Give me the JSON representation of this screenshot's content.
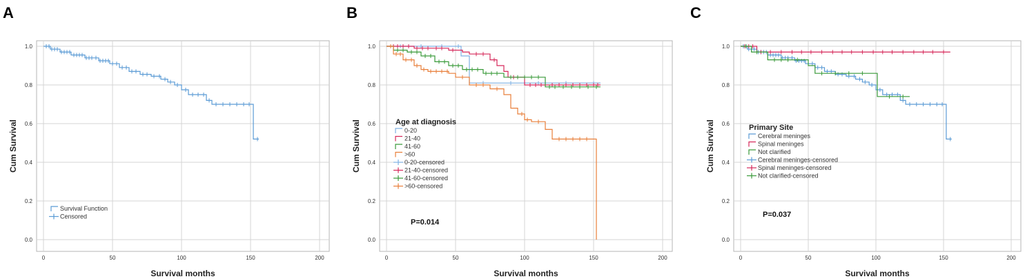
{
  "chart_data": [
    {
      "panel": "A",
      "type": "line",
      "xlabel": "Survival months",
      "ylabel": "Cum Survival",
      "xlim": [
        0,
        200
      ],
      "ylim": [
        0.0,
        1.0
      ],
      "x_ticks": [
        "0",
        "50",
        "100",
        "150",
        "200"
      ],
      "y_ticks": [
        "0.0",
        "0.2",
        "0.4",
        "0.6",
        "0.8",
        "1.0"
      ],
      "legend_title": "",
      "legend_items": [
        "Survival Function",
        "Censored"
      ],
      "p_value": "",
      "series": [
        {
          "name": "Survival Function",
          "color": "#5b9bd5",
          "steps": [
            [
              0,
              1.0
            ],
            [
              5,
              0.985
            ],
            [
              12,
              0.97
            ],
            [
              20,
              0.955
            ],
            [
              30,
              0.94
            ],
            [
              40,
              0.925
            ],
            [
              48,
              0.91
            ],
            [
              55,
              0.89
            ],
            [
              62,
              0.87
            ],
            [
              70,
              0.855
            ],
            [
              78,
              0.845
            ],
            [
              85,
              0.83
            ],
            [
              90,
              0.815
            ],
            [
              95,
              0.8
            ],
            [
              100,
              0.775
            ],
            [
              105,
              0.75
            ],
            [
              118,
              0.72
            ],
            [
              122,
              0.7
            ],
            [
              152,
              0.52
            ],
            [
              156,
              0.52
            ]
          ],
          "censored": [
            2,
            4,
            6,
            8,
            10,
            13,
            15,
            17,
            19,
            22,
            24,
            26,
            28,
            31,
            33,
            35,
            38,
            41,
            43,
            45,
            47,
            50,
            53,
            57,
            60,
            64,
            67,
            72,
            75,
            80,
            84,
            88,
            92,
            97,
            103,
            108,
            112,
            116,
            120,
            125,
            130,
            135,
            140,
            145,
            149,
            155
          ]
        }
      ]
    },
    {
      "panel": "B",
      "type": "line",
      "xlabel": "Survival months",
      "ylabel": "Cum Survival",
      "xlim": [
        0,
        200
      ],
      "ylim": [
        0.0,
        1.0
      ],
      "x_ticks": [
        "0",
        "50",
        "100",
        "150",
        "200"
      ],
      "y_ticks": [
        "0.0",
        "0.2",
        "0.4",
        "0.6",
        "0.8",
        "1.0"
      ],
      "legend_title": "Age at diagnosis",
      "legend_items": [
        "0-20",
        "21-40",
        "41-60",
        ">60",
        "0-20-censored",
        "21-40-censored",
        "41-60-censored",
        ">60-censored"
      ],
      "p_value": "P=0.014",
      "series": [
        {
          "name": "0-20",
          "color": "#7fb1e3",
          "steps": [
            [
              0,
              1.0
            ],
            [
              54,
              0.95
            ],
            [
              60,
              0.81
            ],
            [
              155,
              0.81
            ]
          ],
          "censored": [
            10,
            25,
            40,
            52,
            70,
            90,
            110,
            130,
            150
          ]
        },
        {
          "name": "21-40",
          "color": "#d6285a",
          "steps": [
            [
              0,
              1.0
            ],
            [
              20,
              0.99
            ],
            [
              45,
              0.98
            ],
            [
              55,
              0.97
            ],
            [
              60,
              0.96
            ],
            [
              75,
              0.93
            ],
            [
              80,
              0.9
            ],
            [
              85,
              0.87
            ],
            [
              88,
              0.84
            ],
            [
              100,
              0.8
            ],
            [
              115,
              0.8
            ],
            [
              155,
              0.8
            ]
          ],
          "censored": [
            5,
            8,
            12,
            16,
            22,
            26,
            30,
            36,
            40,
            48,
            65,
            70,
            78,
            92,
            104,
            108,
            112,
            120,
            125,
            130,
            135,
            140,
            145,
            150,
            153
          ]
        },
        {
          "name": "41-60",
          "color": "#3a9a3a",
          "steps": [
            [
              0,
              1.0
            ],
            [
              5,
              0.98
            ],
            [
              15,
              0.97
            ],
            [
              25,
              0.95
            ],
            [
              35,
              0.92
            ],
            [
              45,
              0.9
            ],
            [
              55,
              0.88
            ],
            [
              70,
              0.86
            ],
            [
              85,
              0.84
            ],
            [
              115,
              0.79
            ],
            [
              155,
              0.79
            ]
          ],
          "censored": [
            3,
            8,
            12,
            18,
            22,
            28,
            32,
            38,
            42,
            48,
            52,
            58,
            62,
            66,
            72,
            76,
            80,
            90,
            95,
            100,
            105,
            110,
            118,
            122,
            128,
            134,
            140,
            146,
            152
          ]
        },
        {
          "name": ">60",
          "color": "#e87f3a",
          "steps": [
            [
              0,
              1.0
            ],
            [
              5,
              0.96
            ],
            [
              12,
              0.93
            ],
            [
              20,
              0.9
            ],
            [
              25,
              0.88
            ],
            [
              30,
              0.87
            ],
            [
              45,
              0.86
            ],
            [
              50,
              0.84
            ],
            [
              60,
              0.8
            ],
            [
              75,
              0.78
            ],
            [
              85,
              0.75
            ],
            [
              90,
              0.68
            ],
            [
              95,
              0.65
            ],
            [
              100,
              0.62
            ],
            [
              105,
              0.61
            ],
            [
              115,
              0.57
            ],
            [
              120,
              0.52
            ],
            [
              150,
              0.52
            ],
            [
              152,
              0.0
            ]
          ],
          "censored": [
            3,
            7,
            10,
            14,
            18,
            22,
            27,
            32,
            36,
            40,
            44,
            55,
            65,
            70,
            80,
            98,
            102,
            110,
            125,
            130,
            135,
            140,
            145
          ]
        }
      ]
    },
    {
      "panel": "C",
      "type": "line",
      "xlabel": "Survival months",
      "ylabel": "Cum Survival",
      "xlim": [
        0,
        200
      ],
      "ylim": [
        0.0,
        1.0
      ],
      "x_ticks": [
        "0",
        "50",
        "100",
        "150",
        "200"
      ],
      "y_ticks": [
        "0.0",
        "0.2",
        "0.4",
        "0.6",
        "0.8",
        "1.0"
      ],
      "legend_title": "Primary Site",
      "legend_items": [
        "Cerebral meninges",
        "Spinal meninges",
        "Not clarified",
        "Cerebral meninges-censored",
        "Spinal meninges-censored",
        "Not clarified-censored"
      ],
      "p_value": "P=0.037",
      "series": [
        {
          "name": "Cerebral meninges",
          "color": "#5b9bd5",
          "steps": [
            [
              0,
              1.0
            ],
            [
              5,
              0.985
            ],
            [
              12,
              0.97
            ],
            [
              20,
              0.955
            ],
            [
              30,
              0.94
            ],
            [
              40,
              0.925
            ],
            [
              48,
              0.91
            ],
            [
              55,
              0.89
            ],
            [
              62,
              0.87
            ],
            [
              70,
              0.855
            ],
            [
              78,
              0.845
            ],
            [
              85,
              0.83
            ],
            [
              90,
              0.815
            ],
            [
              95,
              0.8
            ],
            [
              100,
              0.775
            ],
            [
              105,
              0.75
            ],
            [
              118,
              0.72
            ],
            [
              122,
              0.7
            ],
            [
              152,
              0.52
            ],
            [
              156,
              0.52
            ]
          ],
          "censored": [
            2,
            4,
            6,
            8,
            10,
            13,
            15,
            17,
            19,
            22,
            24,
            26,
            28,
            31,
            33,
            35,
            38,
            41,
            43,
            45,
            47,
            50,
            53,
            57,
            60,
            64,
            67,
            72,
            75,
            80,
            84,
            88,
            92,
            97,
            103,
            108,
            112,
            116,
            120,
            125,
            130,
            135,
            140,
            145,
            149,
            155
          ]
        },
        {
          "name": "Spinal meninges",
          "color": "#d6285a",
          "steps": [
            [
              0,
              1.0
            ],
            [
              12,
              0.97
            ],
            [
              155,
              0.97
            ]
          ],
          "censored": [
            3,
            6,
            9,
            15,
            22,
            30,
            38,
            45,
            52,
            60,
            68,
            75,
            82,
            90,
            98,
            105,
            112,
            120,
            128,
            135,
            142,
            150
          ]
        },
        {
          "name": "Not clarified",
          "color": "#3a9a3a",
          "steps": [
            [
              0,
              1.0
            ],
            [
              8,
              0.97
            ],
            [
              20,
              0.93
            ],
            [
              50,
              0.9
            ],
            [
              55,
              0.86
            ],
            [
              100,
              0.86
            ],
            [
              101,
              0.74
            ],
            [
              125,
              0.74
            ]
          ],
          "censored": [
            4,
            12,
            25,
            30,
            35,
            42,
            60,
            70,
            80,
            90,
            110,
            120
          ]
        }
      ]
    }
  ]
}
